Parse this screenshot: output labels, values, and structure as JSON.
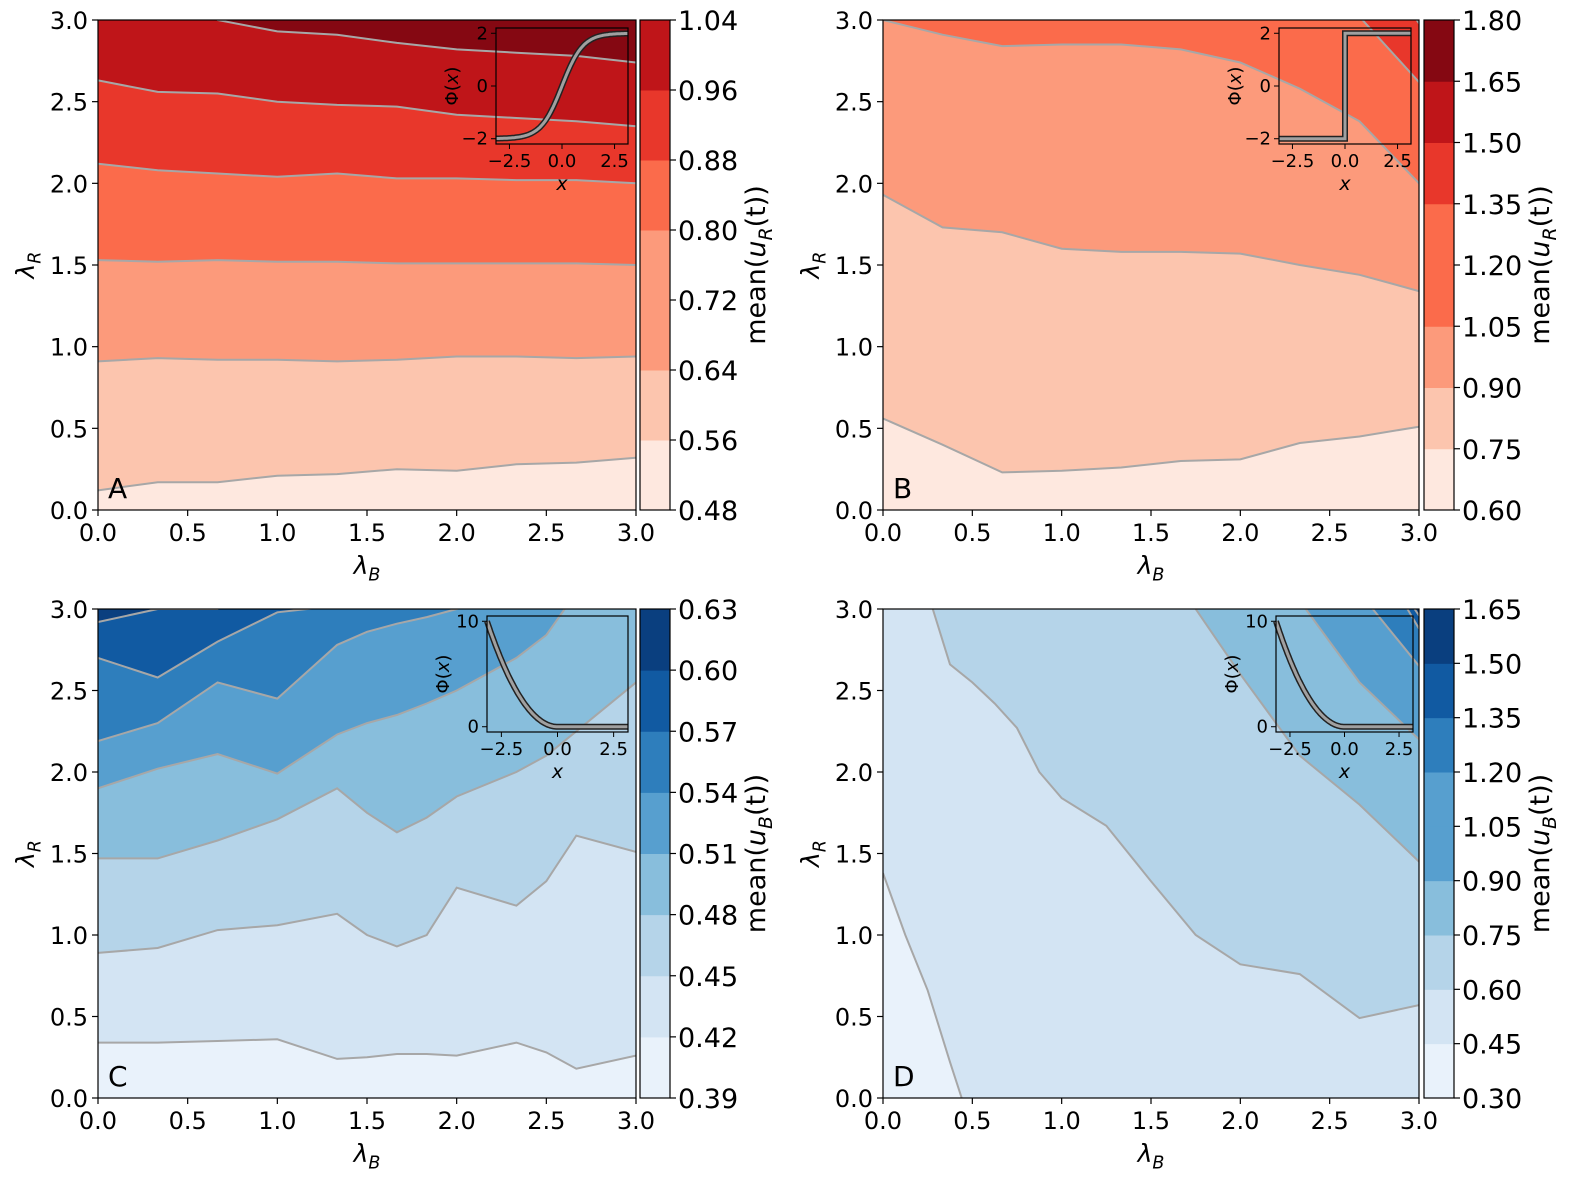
{
  "figure": {
    "theme": {
      "reds": [
        "#fee8df",
        "#fcc5ae",
        "#fc9a7b",
        "#fb6b4b",
        "#e8372b",
        "#bf1519",
        "#850812"
      ],
      "blues": [
        "#e9f2fb",
        "#d3e4f3",
        "#b5d4e9",
        "#88bedc",
        "#579fcf",
        "#2e7ebc",
        "#115aa2",
        "#0a3f7f"
      ],
      "contour_line": "#a7a7a7",
      "inset_curve": "#a0a0a0"
    }
  },
  "chart_data": [
    {
      "type": "contour",
      "panel_label": "A",
      "palette": "reds",
      "xlabel": "λB",
      "ylabel": "λR",
      "xlim": [
        0,
        3
      ],
      "ylim": [
        0,
        3
      ],
      "xticks": [
        "0.0",
        "0.5",
        "1.0",
        "1.5",
        "2.0",
        "2.5",
        "3.0"
      ],
      "yticks": [
        "0.0",
        "0.5",
        "1.0",
        "1.5",
        "2.0",
        "2.5",
        "3.0"
      ],
      "x_grid": [
        0,
        0.333,
        0.667,
        1.0,
        1.333,
        1.667,
        2.0,
        2.333,
        2.667,
        3.0
      ],
      "contours": [
        [
          0.12,
          0.17,
          0.17,
          0.21,
          0.22,
          0.25,
          0.24,
          0.28,
          0.29,
          0.32
        ],
        [
          0.91,
          0.93,
          0.92,
          0.92,
          0.91,
          0.92,
          0.94,
          0.94,
          0.93,
          0.94
        ],
        [
          1.53,
          1.52,
          1.53,
          1.52,
          1.52,
          1.51,
          1.51,
          1.51,
          1.51,
          1.5
        ],
        [
          2.12,
          2.08,
          2.06,
          2.04,
          2.06,
          2.03,
          2.03,
          2.02,
          2.02,
          2.0
        ],
        [
          2.63,
          2.56,
          2.55,
          2.5,
          2.48,
          2.47,
          2.42,
          2.4,
          2.38,
          2.35
        ],
        [
          3.5,
          3.5,
          3.0,
          2.93,
          2.91,
          2.86,
          2.82,
          2.8,
          2.78,
          2.74
        ]
      ],
      "colorbar": {
        "label": "mean(uR(t))",
        "min": 0.48,
        "max": 1.04,
        "ticks": [
          "0.48",
          "0.56",
          "0.64",
          "0.72",
          "0.80",
          "0.88",
          "0.96",
          "1.04"
        ],
        "level_colors": [
          0,
          1,
          2,
          2,
          3,
          4,
          5,
          6
        ]
      },
      "inset": {
        "func": "tanh",
        "xlabel": "x",
        "ylabel": "Φ(x)",
        "xlim": [
          -3.14,
          3.14
        ],
        "ylim": [
          -2.2,
          2.2
        ],
        "xticks": [
          -2.5,
          0,
          2.5
        ],
        "xtick_labels": [
          "−2.5",
          "0.0",
          "2.5"
        ],
        "yticks": [
          -2,
          0,
          2
        ],
        "ytick_labels": [
          "−2",
          "0",
          "2"
        ]
      }
    },
    {
      "type": "contour",
      "panel_label": "B",
      "palette": "reds",
      "xlabel": "λB",
      "ylabel": "λR",
      "xlim": [
        0,
        3
      ],
      "ylim": [
        0,
        3
      ],
      "xticks": [
        "0.0",
        "0.5",
        "1.0",
        "1.5",
        "2.0",
        "2.5",
        "3.0"
      ],
      "yticks": [
        "0.0",
        "0.5",
        "1.0",
        "1.5",
        "2.0",
        "2.5",
        "3.0"
      ],
      "x_grid": [
        0,
        0.333,
        0.667,
        1.0,
        1.333,
        1.667,
        2.0,
        2.333,
        2.667,
        3.0
      ],
      "contours": [
        [
          0.56,
          0.4,
          0.23,
          0.24,
          0.26,
          0.3,
          0.31,
          0.41,
          0.45,
          0.51
        ],
        [
          1.93,
          1.73,
          1.7,
          1.6,
          1.58,
          1.58,
          1.57,
          1.5,
          1.44,
          1.34
        ],
        [
          3.0,
          2.91,
          2.84,
          2.85,
          2.85,
          2.82,
          2.74,
          2.58,
          2.38,
          2.0
        ],
        [
          3.5,
          3.5,
          3.5,
          3.5,
          3.5,
          3.5,
          3.5,
          3.5,
          3.02,
          2.62
        ],
        [
          3.5,
          3.5,
          3.5,
          3.5,
          3.5,
          3.5,
          3.5,
          3.5,
          3.5,
          2.98
        ]
      ],
      "colorbar": {
        "label": "mean(uR(t))",
        "min": 0.6,
        "max": 1.8,
        "ticks": [
          "0.60",
          "0.75",
          "0.90",
          "1.05",
          "1.20",
          "1.35",
          "1.50",
          "1.65",
          "1.80"
        ],
        "level_colors": [
          0,
          1,
          2,
          3,
          3,
          4,
          5,
          6,
          6
        ]
      },
      "inset": {
        "func": "step",
        "xlabel": "x",
        "ylabel": "Φ(x)",
        "xlim": [
          -3.14,
          3.14
        ],
        "ylim": [
          -2.2,
          2.2
        ],
        "xticks": [
          -2.5,
          0,
          2.5
        ],
        "xtick_labels": [
          "−2.5",
          "0.0",
          "2.5"
        ],
        "yticks": [
          -2,
          0,
          2
        ],
        "ytick_labels": [
          "−2",
          "0",
          "2"
        ]
      }
    },
    {
      "type": "contour",
      "panel_label": "C",
      "palette": "blues",
      "xlabel": "λB",
      "ylabel": "λR",
      "xlim": [
        0,
        3
      ],
      "ylim": [
        0,
        3
      ],
      "xticks": [
        "0.0",
        "0.5",
        "1.0",
        "1.5",
        "2.0",
        "2.5",
        "3.0"
      ],
      "yticks": [
        "0.0",
        "0.5",
        "1.0",
        "1.5",
        "2.0",
        "2.5",
        "3.0"
      ],
      "x_grid": [
        0,
        0.333,
        0.667,
        1.0,
        1.333,
        1.5,
        1.667,
        1.833,
        2.0,
        2.333,
        2.5,
        2.667,
        3.0
      ],
      "contours": [
        [
          0.34,
          0.34,
          0.35,
          0.36,
          0.24,
          0.25,
          0.27,
          0.27,
          0.26,
          0.34,
          0.28,
          0.18,
          0.26
        ],
        [
          0.89,
          0.92,
          1.03,
          1.06,
          1.13,
          1.0,
          0.93,
          1.0,
          1.29,
          1.18,
          1.33,
          1.61,
          1.51
        ],
        [
          1.47,
          1.47,
          1.58,
          1.71,
          1.9,
          1.75,
          1.63,
          1.72,
          1.85,
          2.0,
          2.1,
          2.25,
          2.55
        ],
        [
          1.9,
          2.02,
          2.11,
          1.99,
          2.23,
          2.3,
          2.35,
          2.42,
          2.5,
          2.7,
          2.84,
          3.1,
          3.5
        ],
        [
          2.19,
          2.3,
          2.55,
          2.45,
          2.78,
          2.86,
          2.91,
          2.95,
          3.0,
          3.1,
          3.2,
          3.5,
          3.5
        ],
        [
          2.7,
          2.58,
          2.8,
          2.98,
          3.02,
          3.15,
          3.3,
          3.5,
          3.5,
          3.5,
          3.5,
          3.5,
          3.5
        ],
        [
          2.92,
          3.0,
          3.0,
          3.5,
          3.5,
          3.5,
          3.5,
          3.5,
          3.5,
          3.5,
          3.5,
          3.5,
          3.5
        ]
      ],
      "colorbar": {
        "label": "mean(uB(t))",
        "min": 0.39,
        "max": 0.63,
        "ticks": [
          "0.39",
          "0.42",
          "0.45",
          "0.48",
          "0.51",
          "0.54",
          "0.57",
          "0.60",
          "0.63"
        ],
        "level_colors": [
          0,
          1,
          2,
          3,
          4,
          5,
          6,
          7
        ]
      },
      "inset": {
        "func": "decay",
        "xlabel": "x",
        "ylabel": "Φ(x)",
        "xlim": [
          -3.14,
          3.14
        ],
        "ylim": [
          -0.5,
          10.5
        ],
        "xticks": [
          -2.5,
          0,
          2.5
        ],
        "xtick_labels": [
          "−2.5",
          "0.0",
          "2.5"
        ],
        "yticks": [
          0,
          10
        ],
        "ytick_labels": [
          "0",
          "10"
        ]
      }
    },
    {
      "type": "contour",
      "panel_label": "D",
      "palette": "blues",
      "xlabel": "λB",
      "ylabel": "λR",
      "xlim": [
        0,
        3
      ],
      "ylim": [
        0,
        3
      ],
      "xticks": [
        "0.0",
        "0.5",
        "1.0",
        "1.5",
        "2.0",
        "2.5",
        "3.0"
      ],
      "yticks": [
        "0.0",
        "0.5",
        "1.0",
        "1.5",
        "2.0",
        "2.5",
        "3.0"
      ],
      "x_grid": [
        0,
        0.125,
        0.25,
        0.375,
        0.5,
        0.625,
        0.75,
        0.875,
        1.0,
        1.25,
        1.5,
        1.75,
        2.0,
        2.333,
        2.667,
        3.0
      ],
      "contours": [
        [
          1.38,
          1.0,
          0.66,
          0.22,
          -0.2,
          -0.3,
          -0.3,
          -0.3,
          -0.3,
          -0.3,
          -0.3,
          -0.3,
          -0.3,
          -0.3,
          -0.3,
          -0.3
        ],
        [
          3.3,
          3.2,
          3.1,
          2.66,
          2.55,
          2.42,
          2.27,
          2.0,
          1.84,
          1.67,
          1.33,
          1.0,
          0.82,
          0.76,
          0.49,
          0.57
        ],
        [
          3.5,
          3.5,
          3.5,
          3.5,
          3.5,
          3.5,
          3.5,
          3.5,
          3.5,
          3.5,
          3.5,
          3.0,
          2.6,
          2.1,
          1.8,
          1.45
        ],
        [
          3.5,
          3.5,
          3.5,
          3.5,
          3.5,
          3.5,
          3.5,
          3.5,
          3.5,
          3.5,
          3.5,
          3.5,
          3.5,
          3.05,
          2.55,
          2.2
        ],
        [
          3.5,
          3.5,
          3.5,
          3.5,
          3.5,
          3.5,
          3.5,
          3.5,
          3.5,
          3.5,
          3.5,
          3.5,
          3.5,
          3.5,
          3.1,
          2.65
        ],
        [
          3.5,
          3.5,
          3.5,
          3.5,
          3.5,
          3.5,
          3.5,
          3.5,
          3.5,
          3.5,
          3.5,
          3.5,
          3.5,
          3.5,
          3.5,
          2.88
        ],
        [
          3.5,
          3.5,
          3.5,
          3.5,
          3.5,
          3.5,
          3.5,
          3.5,
          3.5,
          3.5,
          3.5,
          3.5,
          3.5,
          3.5,
          3.5,
          2.96
        ]
      ],
      "colorbar": {
        "label": "mean(uB(t))",
        "min": 0.3,
        "max": 1.65,
        "ticks": [
          "0.30",
          "0.45",
          "0.60",
          "0.75",
          "0.90",
          "1.05",
          "1.20",
          "1.35",
          "1.50",
          "1.65"
        ],
        "level_colors": [
          0,
          1,
          2,
          3,
          4,
          4,
          5,
          6,
          7
        ]
      },
      "inset": {
        "func": "decay",
        "xlabel": "x",
        "ylabel": "Φ(x)",
        "xlim": [
          -3.14,
          3.14
        ],
        "ylim": [
          -0.5,
          10.5
        ],
        "xticks": [
          -2.5,
          0,
          2.5
        ],
        "xtick_labels": [
          "−2.5",
          "0.0",
          "2.5"
        ],
        "yticks": [
          0,
          10
        ],
        "ytick_labels": [
          "0",
          "10"
        ]
      }
    }
  ]
}
